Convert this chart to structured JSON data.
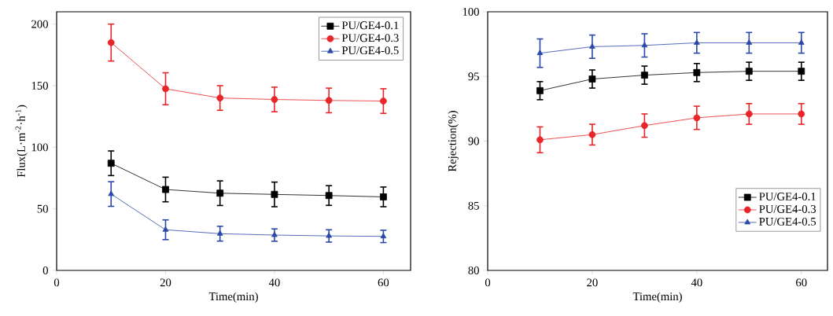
{
  "chart_data": [
    {
      "type": "line",
      "xlabel": "Time(min)",
      "ylabel": "Flux(L·m$^{-2}$·h$^{-1}$)",
      "x": [
        10,
        20,
        30,
        40,
        50,
        60
      ],
      "xlim": [
        0,
        65
      ],
      "xticks": [
        0,
        20,
        40,
        60
      ],
      "ylim": [
        0,
        210
      ],
      "yticks": [
        0,
        50,
        100,
        150,
        200
      ],
      "legend": "top right",
      "grid": false,
      "series": [
        {
          "name": "PU/GE4-0.1",
          "color": "#000000",
          "marker": "square",
          "values": [
            87,
            65.7,
            62.7,
            61.7,
            60.8,
            59.7
          ],
          "errors": [
            10,
            10,
            10,
            10,
            8,
            8
          ]
        },
        {
          "name": "PU/GE4-0.3",
          "color": "#e8262a",
          "marker": "circle",
          "values": [
            185,
            147.5,
            140,
            138.8,
            138,
            137.5
          ],
          "errors": [
            15,
            13,
            10,
            10,
            10,
            10
          ]
        },
        {
          "name": "PU/GE4-0.5",
          "color": "#2b48a8",
          "marker": "triangle",
          "values": [
            62,
            33,
            29.8,
            28.7,
            28,
            27.6
          ],
          "errors": [
            10,
            8,
            6,
            5,
            5,
            5
          ]
        }
      ]
    },
    {
      "type": "line",
      "xlabel": "Time(min)",
      "ylabel": "Rejection(%)",
      "x": [
        10,
        20,
        30,
        40,
        50,
        60
      ],
      "xlim": [
        0,
        65
      ],
      "xticks": [
        0,
        20,
        40,
        60
      ],
      "ylim": [
        80,
        100
      ],
      "yticks": [
        80,
        85,
        90,
        95,
        100
      ],
      "legend": "bottom right",
      "grid": false,
      "series": [
        {
          "name": "PU/GE4-0.1",
          "color": "#000000",
          "marker": "square",
          "values": [
            93.9,
            94.8,
            95.1,
            95.3,
            95.4,
            95.4
          ],
          "errors": [
            0.7,
            0.7,
            0.7,
            0.7,
            0.7,
            0.7
          ]
        },
        {
          "name": "PU/GE4-0.3",
          "color": "#e8262a",
          "marker": "circle",
          "values": [
            90.1,
            90.5,
            91.2,
            91.8,
            92.1,
            92.1
          ],
          "errors": [
            1,
            0.8,
            0.9,
            0.9,
            0.8,
            0.8
          ]
        },
        {
          "name": "PU/GE4-0.5",
          "color": "#2b48a8",
          "marker": "triangle",
          "values": [
            96.8,
            97.3,
            97.4,
            97.6,
            97.6,
            97.6
          ],
          "errors": [
            1.1,
            0.9,
            0.9,
            0.8,
            0.8,
            0.8
          ]
        }
      ]
    }
  ]
}
